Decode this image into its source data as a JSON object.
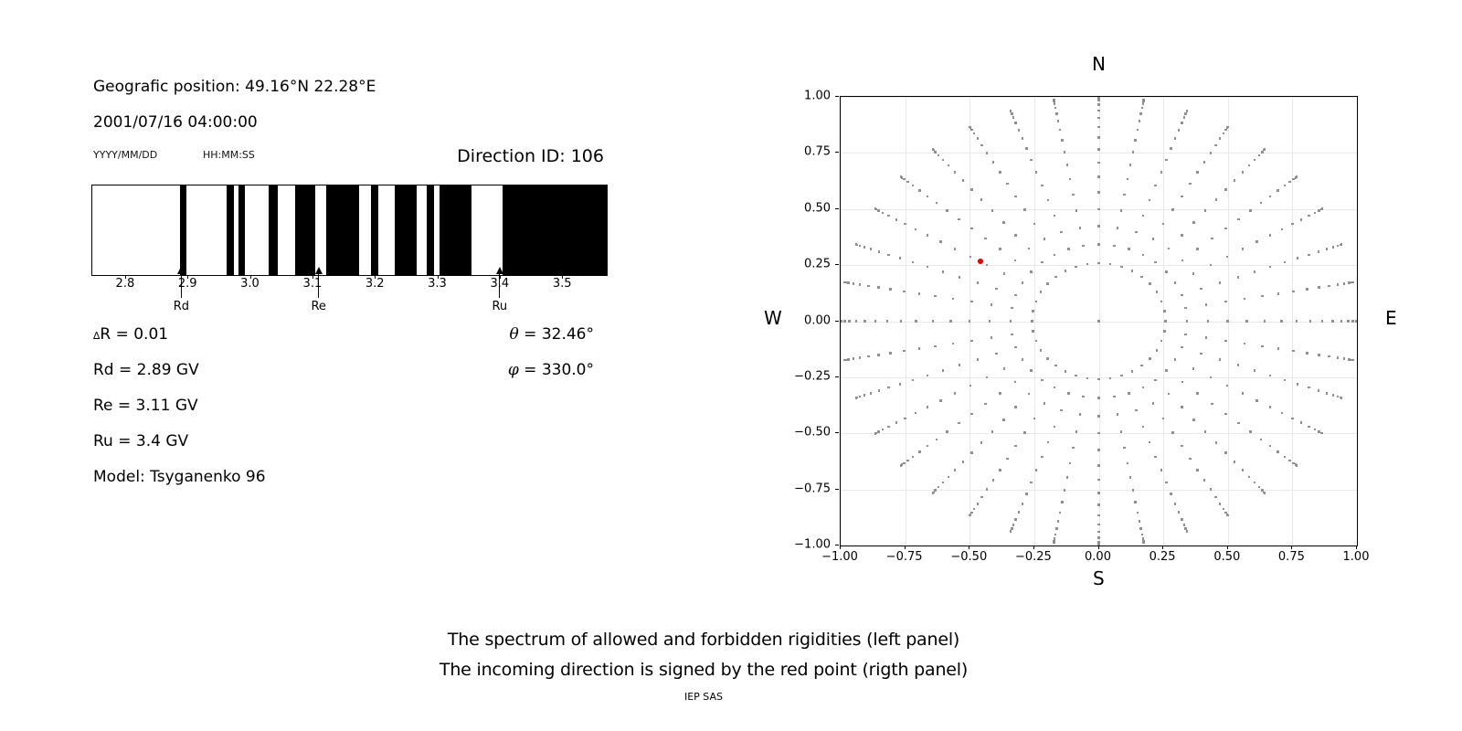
{
  "header": {
    "geo_position": "Geografic position: 49.16°N 22.28°E",
    "datetime": "2001/07/16 04:00:00",
    "date_format": "YYYY/MM/DD",
    "time_format": "HH:MM:SS",
    "direction_id": "Direction ID: 106"
  },
  "readouts": {
    "delta_symbol": "∆",
    "delta_rest": "R = 0.01",
    "rd": "Rd = 2.89 GV",
    "re": "Re = 3.11 GV",
    "ru": "Ru = 3.4 GV",
    "model": "Model: Tsyganenko 96",
    "theta_symbol": "θ",
    "theta_rest": " = 32.46°",
    "phi_symbol": "φ",
    "phi_rest": " = 330.0°"
  },
  "captions": {
    "line1": "The spectrum of allowed and forbidden rigidities (left panel)",
    "line2": "The incoming direction is signed by the red point (rigth panel)",
    "credit": "IEP SAS"
  },
  "chart_data": [
    {
      "type": "bar",
      "name": "rigidity-spectrum",
      "description": "Binary barcode spectrum of allowed (white) and forbidden (black) rigidities in GV",
      "axis_min": 2.746,
      "axis_max": 3.57,
      "tick_values": [
        2.8,
        2.9,
        3.0,
        3.1,
        3.2,
        3.3,
        3.4,
        3.5
      ],
      "tick_labels": [
        "2.8",
        "2.9",
        "3.0",
        "3.1",
        "3.2",
        "3.3",
        "3.4",
        "3.5"
      ],
      "allowed_color": "#ffffff",
      "forbidden_color": "#000000",
      "forbidden_intervals": [
        [
          2.886,
          2.897
        ],
        [
          2.961,
          2.973
        ],
        [
          2.98,
          2.99
        ],
        [
          3.029,
          3.043
        ],
        [
          3.071,
          3.103
        ],
        [
          3.121,
          3.173
        ],
        [
          3.193,
          3.204
        ],
        [
          3.231,
          3.265
        ],
        [
          3.282,
          3.294
        ],
        [
          3.302,
          3.354
        ],
        [
          3.403,
          3.57
        ]
      ],
      "arrows": [
        {
          "value": 2.89,
          "label": "Rd"
        },
        {
          "value": 3.11,
          "label": "Re"
        },
        {
          "value": 3.4,
          "label": "Ru"
        }
      ]
    },
    {
      "type": "scatter",
      "name": "incoming-direction-sky-map",
      "xlim": [
        -1,
        1
      ],
      "ylim": [
        -1,
        1
      ],
      "grid": true,
      "xtick_values": [
        -1,
        -0.75,
        -0.5,
        -0.25,
        0,
        0.25,
        0.5,
        0.75,
        1
      ],
      "xtick_labels": [
        "−1.00",
        "−0.75",
        "−0.50",
        "−0.25",
        "0.00",
        "0.25",
        "0.50",
        "0.75",
        "1.00"
      ],
      "ytick_values": [
        -1,
        -0.75,
        -0.5,
        -0.25,
        0,
        0.25,
        0.5,
        0.75,
        1
      ],
      "ytick_labels": [
        "−1.00",
        "−0.75",
        "−0.50",
        "−0.25",
        "0.00",
        "0.25",
        "0.50",
        "0.75",
        "1.00"
      ],
      "compass_labels": {
        "n": "N",
        "s": "S",
        "e": "E",
        "w": "W"
      },
      "direction_grid": {
        "azimuth_start_deg": 0,
        "azimuth_step_deg": 10,
        "azimuth_count": 36,
        "zenith_min_deg": 15,
        "zenith_max_deg": 90,
        "zenith_step_deg": 5,
        "radius_mapping": "sin(zenith)",
        "center_point": true,
        "dot_color": "#8f8f8f"
      },
      "red_point": {
        "x": -0.46,
        "y": 0.265,
        "color": "#e60000"
      }
    }
  ]
}
